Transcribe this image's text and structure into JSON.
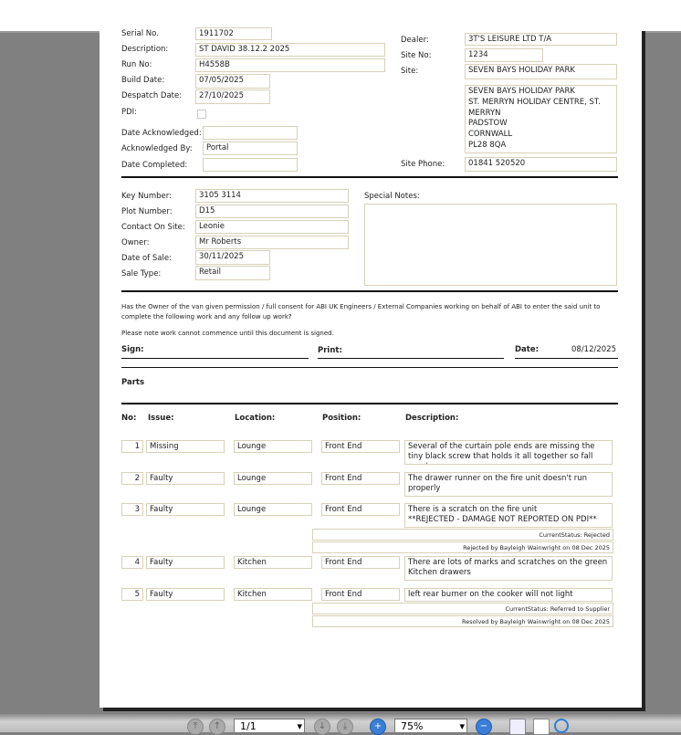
{
  "header": {
    "serial_label": "Serial No.",
    "serial": "1911702",
    "description_label": "Description:",
    "description": "ST DAVID 38.12.2 2025",
    "run_label": "Run No:",
    "run": "H4558B",
    "build_label": "Build Date:",
    "build": "07/05/2025",
    "despatch_label": "Despatch Date:",
    "despatch": "27/10/2025",
    "pdi_label": "PDI:",
    "pdi_checked": false,
    "ack_date_label": "Date Acknowledged:",
    "ack_date": "",
    "ack_by_label": "Acknowledged By:",
    "ack_by": "Portal",
    "completed_label": "Date Completed:",
    "completed": "",
    "dealer_label": "Dealer:",
    "dealer": "3T'S LEISURE LTD T/A",
    "site_no_label": "Site No:",
    "site_no": "1234",
    "site_label": "Site:",
    "site": "SEVEN BAYS HOLIDAY PARK",
    "address": "SEVEN BAYS HOLIDAY PARK\nST. MERRYN HOLIDAY CENTRE, ST.\nMERRYN\nPADSTOW\nCORNWALL\nPL28 8QA",
    "phone_label": "Site Phone:",
    "phone": "01841 520520"
  },
  "sale": {
    "key_label": "Key Number:",
    "key": "3105 3114",
    "plot_label": "Plot Number:",
    "plot": "D15",
    "contact_label": "Contact On Site:",
    "contact": "Leonie",
    "owner_label": "Owner:",
    "owner": "Mr Roberts",
    "date_label": "Date of Sale:",
    "date": "30/11/2025",
    "type_label": "Sale Type:",
    "type": "Retail",
    "notes_label": "Special Notes:",
    "notes": ""
  },
  "consent": {
    "question": "Has the Owner of the van given permission / full consent for ABI UK Engineers / External Companies working on behalf of ABI to enter the said unit to complete the following work and any follow up work?",
    "note": "Please note work cannot commence until this document is signed.",
    "sign_label": "Sign:",
    "print_label": "Print:",
    "date_label": "Date:",
    "date": "08/12/2025"
  },
  "parts": {
    "title": "Parts",
    "headers": {
      "no": "No:",
      "issue": "Issue:",
      "location": "Location:",
      "position": "Position:",
      "description": "Description:"
    },
    "rows": [
      {
        "no": "1",
        "issue": "Missing",
        "location": "Lounge",
        "position": "Front End",
        "description": "Several of the curtain pole ends are missing the tiny black screw that holds it all together so fall apart"
      },
      {
        "no": "2",
        "issue": "Faulty",
        "location": "Lounge",
        "position": "Front End",
        "description": "The drawer runner on the fire unit doesn't run properly"
      },
      {
        "no": "3",
        "issue": "Faulty",
        "location": "Lounge",
        "position": "Front End",
        "description": "There is a scratch on the fire unit\n**REJECTED - DAMAGE NOT REPORTED ON PDI**",
        "status": "CurrentStatus: Rejected",
        "resolution": "Rejected by Bayleigh Wainwright on 08 Dec 2025"
      },
      {
        "no": "4",
        "issue": "Faulty",
        "location": "Kitchen",
        "position": "Front End",
        "description": "There are lots of marks and scratches on the green Kitchen drawers"
      },
      {
        "no": "5",
        "issue": "Faulty",
        "location": "Kitchen",
        "position": "Front End",
        "description": "left rear burner on the cooker will not light",
        "status": "CurrentStatus: Referred to Supplier",
        "resolution": "Resolved by Bayleigh Wainwright on 08 Dec 2025"
      }
    ]
  },
  "toolbar": {
    "page": "1/1",
    "zoom": "75%"
  }
}
